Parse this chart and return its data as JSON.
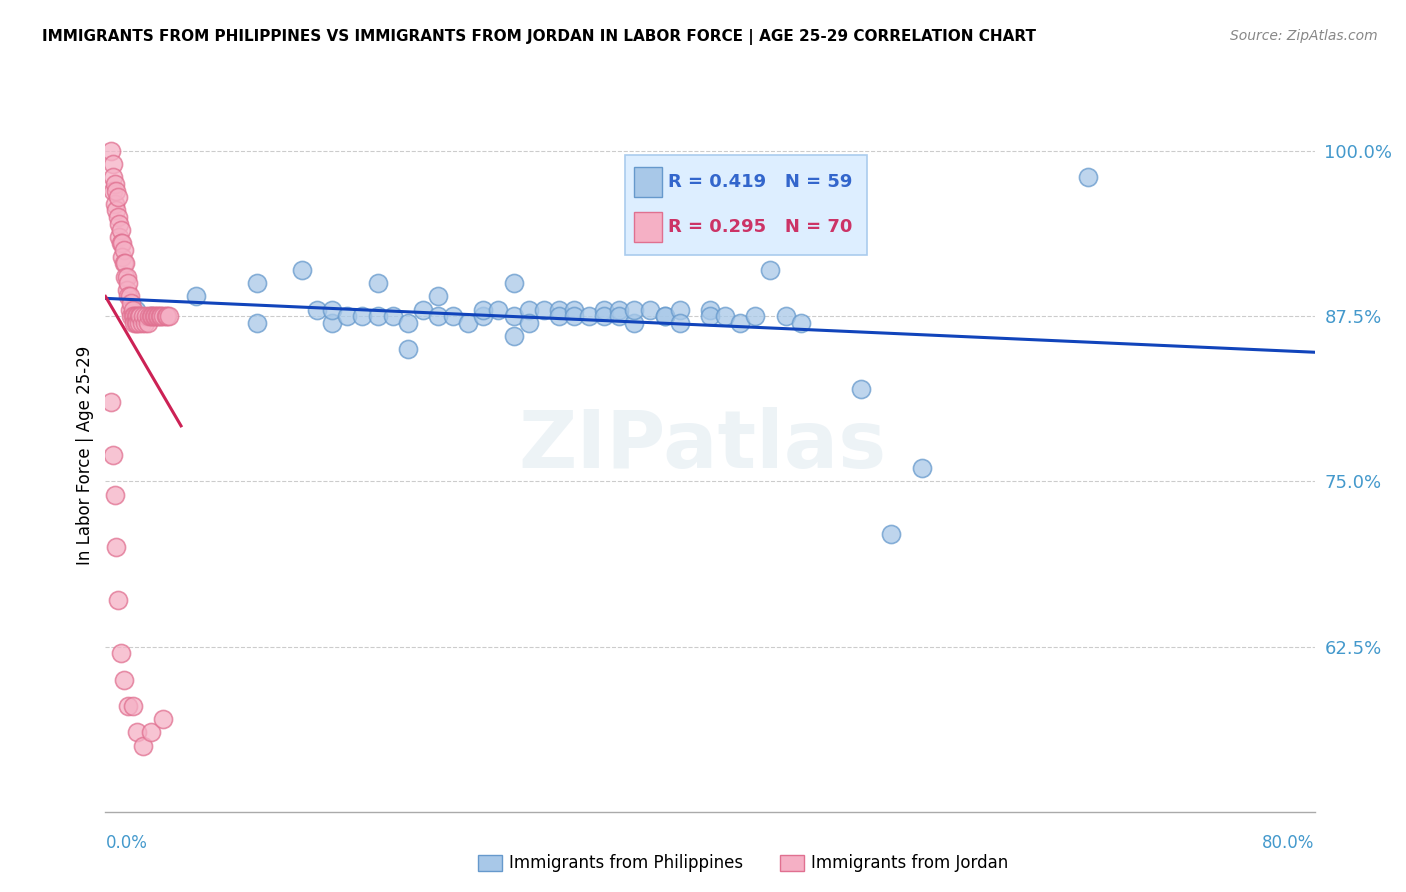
{
  "title": "IMMIGRANTS FROM PHILIPPINES VS IMMIGRANTS FROM JORDAN IN LABOR FORCE | AGE 25-29 CORRELATION CHART",
  "source": "Source: ZipAtlas.com",
  "ylabel": "In Labor Force | Age 25-29",
  "xlim": [
    0.0,
    0.8
  ],
  "ylim": [
    0.5,
    1.04
  ],
  "yticks": [
    0.625,
    0.75,
    0.875,
    1.0
  ],
  "ytick_labels": [
    "62.5%",
    "75.0%",
    "87.5%",
    "100.0%"
  ],
  "blue_color": "#a8c8e8",
  "blue_edge": "#6699cc",
  "pink_color": "#f5b0c5",
  "pink_edge": "#e07090",
  "blue_line_color": "#1144bb",
  "pink_line_color": "#cc2255",
  "blue_R": 0.419,
  "blue_N": 59,
  "pink_R": 0.295,
  "pink_N": 70,
  "blue_scatter_x": [
    0.02,
    0.02,
    0.03,
    0.06,
    0.1,
    0.1,
    0.13,
    0.14,
    0.15,
    0.15,
    0.16,
    0.17,
    0.18,
    0.18,
    0.19,
    0.2,
    0.21,
    0.22,
    0.22,
    0.23,
    0.24,
    0.25,
    0.25,
    0.26,
    0.27,
    0.27,
    0.28,
    0.28,
    0.29,
    0.3,
    0.3,
    0.31,
    0.31,
    0.32,
    0.33,
    0.33,
    0.34,
    0.34,
    0.35,
    0.35,
    0.36,
    0.37,
    0.37,
    0.38,
    0.38,
    0.4,
    0.4,
    0.41,
    0.42,
    0.43,
    0.44,
    0.45,
    0.46,
    0.5,
    0.52,
    0.54,
    0.65,
    0.2,
    0.27
  ],
  "blue_scatter_y": [
    0.88,
    0.875,
    0.875,
    0.89,
    0.9,
    0.87,
    0.91,
    0.88,
    0.87,
    0.88,
    0.875,
    0.875,
    0.9,
    0.875,
    0.875,
    0.87,
    0.88,
    0.875,
    0.89,
    0.875,
    0.87,
    0.875,
    0.88,
    0.88,
    0.875,
    0.9,
    0.88,
    0.87,
    0.88,
    0.88,
    0.875,
    0.88,
    0.875,
    0.875,
    0.88,
    0.875,
    0.88,
    0.875,
    0.87,
    0.88,
    0.88,
    0.875,
    0.875,
    0.88,
    0.87,
    0.88,
    0.875,
    0.875,
    0.87,
    0.875,
    0.91,
    0.875,
    0.87,
    0.82,
    0.71,
    0.76,
    0.98,
    0.85,
    0.86
  ],
  "pink_scatter_x": [
    0.004,
    0.005,
    0.005,
    0.005,
    0.006,
    0.006,
    0.007,
    0.007,
    0.008,
    0.008,
    0.009,
    0.009,
    0.01,
    0.01,
    0.011,
    0.011,
    0.012,
    0.012,
    0.013,
    0.013,
    0.014,
    0.014,
    0.015,
    0.015,
    0.016,
    0.016,
    0.017,
    0.017,
    0.018,
    0.018,
    0.019,
    0.019,
    0.02,
    0.02,
    0.021,
    0.021,
    0.022,
    0.022,
    0.023,
    0.024,
    0.025,
    0.026,
    0.027,
    0.028,
    0.029,
    0.03,
    0.031,
    0.032,
    0.033,
    0.034,
    0.035,
    0.036,
    0.037,
    0.038,
    0.04,
    0.041,
    0.042,
    0.004,
    0.005,
    0.006,
    0.007,
    0.008,
    0.01,
    0.012,
    0.015,
    0.018,
    0.021,
    0.025,
    0.03,
    0.038
  ],
  "pink_scatter_y": [
    1.0,
    0.99,
    0.98,
    0.97,
    0.975,
    0.96,
    0.97,
    0.955,
    0.965,
    0.95,
    0.945,
    0.935,
    0.94,
    0.93,
    0.93,
    0.92,
    0.925,
    0.915,
    0.915,
    0.905,
    0.905,
    0.895,
    0.9,
    0.89,
    0.89,
    0.88,
    0.885,
    0.875,
    0.88,
    0.875,
    0.875,
    0.87,
    0.875,
    0.87,
    0.875,
    0.87,
    0.875,
    0.87,
    0.875,
    0.87,
    0.875,
    0.87,
    0.875,
    0.87,
    0.875,
    0.875,
    0.875,
    0.875,
    0.875,
    0.875,
    0.875,
    0.875,
    0.875,
    0.875,
    0.875,
    0.875,
    0.875,
    0.81,
    0.77,
    0.74,
    0.7,
    0.66,
    0.62,
    0.6,
    0.58,
    0.58,
    0.56,
    0.55,
    0.56,
    0.57
  ]
}
